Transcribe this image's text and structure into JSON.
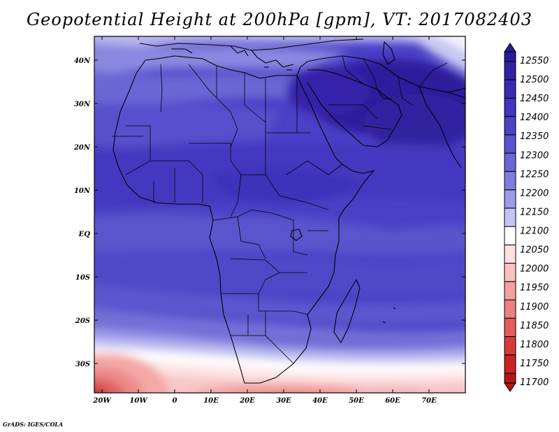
{
  "title": "Geopotential Height at 200hPa [gpm], VT: 2017082403",
  "credit": "GrADS: IGES/COLA",
  "map": {
    "lon_range": [
      -22,
      80
    ],
    "lat_range": [
      -37,
      45
    ],
    "x_ticks": [
      "20W",
      "10W",
      "0",
      "10E",
      "20E",
      "30E",
      "40E",
      "50E",
      "60E",
      "70E"
    ],
    "y_ticks": [
      "40N",
      "30N",
      "20N",
      "10N",
      "EQ",
      "10S",
      "20S",
      "30S"
    ],
    "field": "geopotential height 200hPa",
    "regions": "Africa, Middle East, Arabian Peninsula, southwest Asia, Indian Ocean"
  },
  "colorbar": {
    "labels": [
      "12550",
      "12500",
      "12450",
      "12400",
      "12350",
      "12300",
      "12250",
      "12200",
      "12150",
      "12100",
      "12050",
      "12000",
      "11950",
      "11900",
      "11850",
      "11800",
      "11750",
      "11700"
    ],
    "colors": [
      "#2a1a9a",
      "#3220a8",
      "#3a2ab4",
      "#4234be",
      "#4c42c6",
      "#5a52cc",
      "#6a66d4",
      "#7f7ede",
      "#9b9ce8",
      "#c4c4f4",
      "#ffffff",
      "#fde0e0",
      "#f9c0c0",
      "#f4a0a0",
      "#ec8080",
      "#e25c5c",
      "#d83a3a",
      "#c82424",
      "#b01818"
    ]
  }
}
